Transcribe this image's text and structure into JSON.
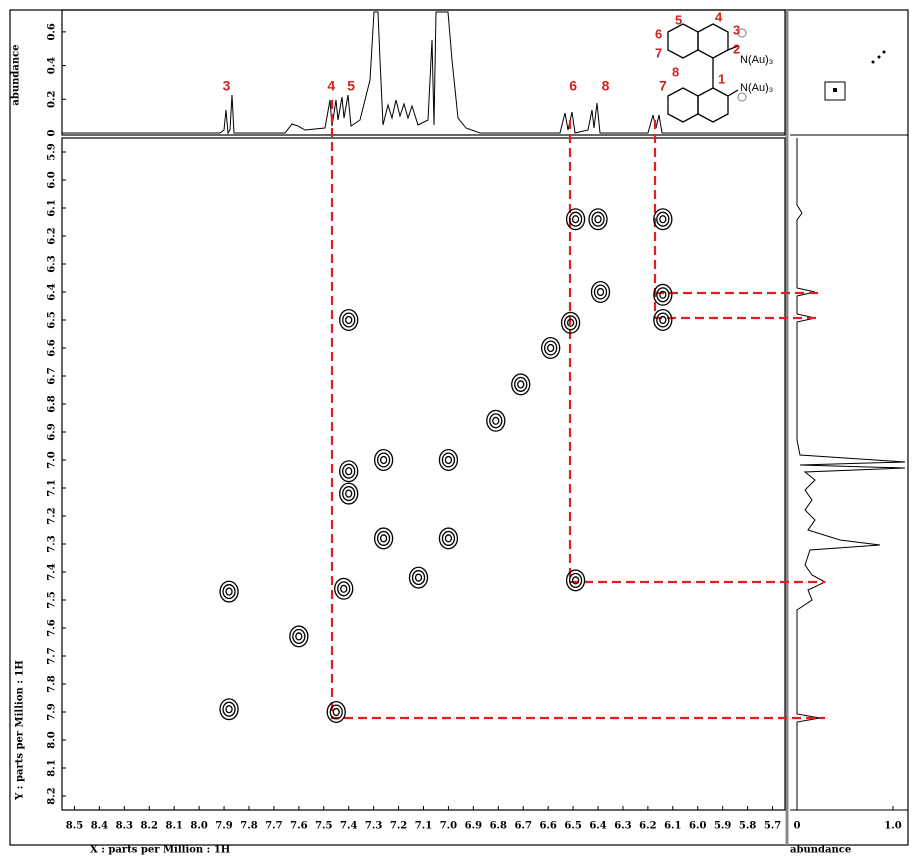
{
  "chart_data": {
    "type": "cosy",
    "xlabel": "X : parts per Million : 1H",
    "ylabel": "Y : parts per Million : 1H",
    "xlim": [
      8.55,
      5.65
    ],
    "ylim": [
      5.85,
      8.25
    ],
    "xticks": [
      8.5,
      8.4,
      8.3,
      8.2,
      8.1,
      {
        "value": 8,
        "label": "8.0"
      },
      7.9,
      7.8,
      7.7,
      7.6,
      7.5,
      7.4,
      7.3,
      7.2,
      7.1,
      {
        "value": 7,
        "label": "7.0"
      },
      6.9,
      6.8,
      6.7,
      6.6,
      6.5,
      6.4,
      6.3,
      6.2,
      6.1,
      {
        "value": 6,
        "label": "6.0"
      },
      5.9,
      5.8,
      5.7
    ],
    "yticks": [
      5.9,
      {
        "value": 6,
        "label": "6.0"
      },
      6.1,
      6.2,
      6.3,
      6.4,
      6.5,
      6.6,
      6.7,
      6.8,
      6.9,
      {
        "value": 7,
        "label": "7.0"
      },
      7.1,
      7.2,
      7.3,
      7.4,
      7.5,
      7.6,
      7.7,
      7.8,
      7.9,
      {
        "value": 8,
        "label": "8.0"
      },
      8.1,
      8.2
    ],
    "top_projection": {
      "label": "abundance",
      "ylim": [
        0,
        0.7
      ],
      "yticks": [
        0,
        0.2,
        0.4,
        0.6
      ]
    },
    "right_projection": {
      "label": "abundance",
      "xlim": [
        0,
        1.0
      ],
      "xticks": [
        0,
        {
          "value": 1,
          "label": "1.0"
        }
      ]
    },
    "peak_labels": [
      {
        "label": "3",
        "x": 7.89
      },
      {
        "label": "4",
        "x": 7.47
      },
      {
        "label": "5",
        "x": 7.39
      },
      {
        "label": "6",
        "x": 6.5
      },
      {
        "label": "8",
        "x": 6.37
      },
      {
        "label": "7",
        "x": 6.14
      }
    ],
    "cross_peaks": {
      "x": [
        7.88,
        7.88,
        7.45,
        7.4,
        6.49,
        6.49,
        6.4,
        6.14,
        6.14,
        6.14,
        6.39,
        6.51,
        6.59,
        6.71,
        6.81,
        7.26,
        7.0,
        7.0,
        7.26,
        7.4,
        7.4,
        7.12,
        7.42,
        7.6
      ],
      "y": [
        7.47,
        7.89,
        7.9,
        6.5,
        7.43,
        6.14,
        6.14,
        6.14,
        6.41,
        6.5,
        6.4,
        6.51,
        6.6,
        6.73,
        6.86,
        7.0,
        7.0,
        7.28,
        7.28,
        7.04,
        7.12,
        7.42,
        7.46,
        7.63
      ]
    },
    "molecule": {
      "labels": [
        "5",
        "4",
        "3",
        "6",
        "2",
        "7",
        "1",
        "8"
      ],
      "substituents": [
        "N(Au)₃",
        "N(Au)₃"
      ]
    }
  }
}
